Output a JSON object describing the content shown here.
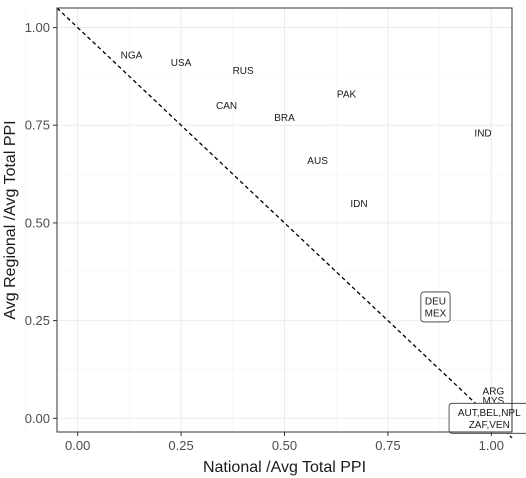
{
  "chart_data": {
    "type": "scatter",
    "title": "",
    "xlabel": "National /Avg Total PPI",
    "ylabel": "Avg Regional /Avg Total PPI",
    "xlim": [
      -0.05,
      1.05
    ],
    "ylim": [
      -0.035,
      1.05
    ],
    "grid": true,
    "x_ticks": [
      "0.00",
      "0.25",
      "0.50",
      "0.75",
      "1.00"
    ],
    "y_ticks": [
      "0.00",
      "0.25",
      "0.50",
      "0.75",
      "1.00"
    ],
    "reference_line": {
      "style": "dashed",
      "from": [
        -0.05,
        1.05
      ],
      "to": [
        1.05,
        -0.05
      ]
    },
    "points": [
      {
        "label": "NGA",
        "x": 0.13,
        "y": 0.93
      },
      {
        "label": "USA",
        "x": 0.25,
        "y": 0.91
      },
      {
        "label": "RUS",
        "x": 0.4,
        "y": 0.89
      },
      {
        "label": "PAK",
        "x": 0.65,
        "y": 0.83
      },
      {
        "label": "CAN",
        "x": 0.36,
        "y": 0.8
      },
      {
        "label": "BRA",
        "x": 0.5,
        "y": 0.77
      },
      {
        "label": "IND",
        "x": 0.98,
        "y": 0.73
      },
      {
        "label": "AUS",
        "x": 0.58,
        "y": 0.66
      },
      {
        "label": "IDN",
        "x": 0.68,
        "y": 0.55
      }
    ],
    "boxed_labels": [
      {
        "lines": [
          "DEU",
          "MEX"
        ],
        "x": 0.865,
        "y": 0.285
      },
      {
        "lines": [
          "AUT,BEL,NPL",
          "ZAF,VEN"
        ],
        "x": 0.995,
        "y": 0.0
      }
    ],
    "plain_labels": [
      {
        "label": "ARG",
        "x": 1.005,
        "y": 0.07
      },
      {
        "label": "MYS",
        "x": 1.005,
        "y": 0.045
      }
    ]
  }
}
